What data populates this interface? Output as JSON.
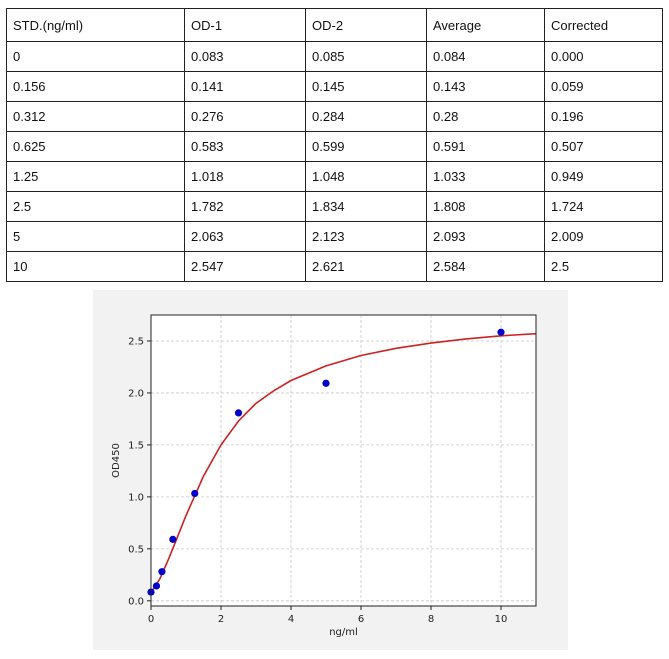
{
  "table": {
    "headers": [
      "STD.(ng/ml)",
      "OD-1",
      "OD-2",
      "Average",
      "Corrected"
    ],
    "rows": [
      [
        "0",
        "0.083",
        "0.085",
        "0.084",
        "0.000"
      ],
      [
        "0.156",
        "0.141",
        "0.145",
        "0.143",
        "0.059"
      ],
      [
        "0.312",
        "0.276",
        "0.284",
        "0.28",
        "0.196"
      ],
      [
        "0.625",
        "0.583",
        "0.599",
        "0.591",
        "0.507"
      ],
      [
        "1.25",
        "1.018",
        "1.048",
        "1.033",
        "0.949"
      ],
      [
        "2.5",
        "1.782",
        "1.834",
        "1.808",
        "1.724"
      ],
      [
        "5",
        "2.063",
        "2.123",
        "2.093",
        "2.009"
      ],
      [
        "10",
        "2.547",
        "2.621",
        "2.584",
        "2.5"
      ]
    ]
  },
  "chart_data": {
    "type": "scatter",
    "xlabel": "ng/ml",
    "ylabel": "OD450",
    "xlim": [
      0,
      11
    ],
    "ylim": [
      -0.05,
      2.75
    ],
    "xticks": [
      0,
      2,
      4,
      6,
      8,
      10
    ],
    "yticks": [
      0.0,
      0.5,
      1.0,
      1.5,
      2.0,
      2.5
    ],
    "xtick_labels": [
      "0",
      "2",
      "4",
      "6",
      "8",
      "10"
    ],
    "ytick_labels": [
      "0.0",
      "0.5",
      "1.0",
      "1.5",
      "2.0",
      "2.5"
    ],
    "grid": true,
    "series": [
      {
        "kind": "points",
        "color": "#0000cc",
        "x": [
          0,
          0.156,
          0.312,
          0.625,
          1.25,
          2.5,
          5,
          10
        ],
        "y": [
          0.084,
          0.143,
          0.28,
          0.591,
          1.033,
          1.808,
          2.093,
          2.584
        ]
      },
      {
        "kind": "fit-curve",
        "color": "#cc2222",
        "x": [
          0,
          0.25,
          0.5,
          0.75,
          1,
          1.5,
          2,
          2.5,
          3,
          3.5,
          4,
          5,
          6,
          7,
          8,
          9,
          10,
          11
        ],
        "y": [
          0.08,
          0.21,
          0.4,
          0.61,
          0.82,
          1.2,
          1.5,
          1.73,
          1.9,
          2.02,
          2.12,
          2.26,
          2.36,
          2.43,
          2.48,
          2.52,
          2.55,
          2.57
        ]
      }
    ]
  }
}
